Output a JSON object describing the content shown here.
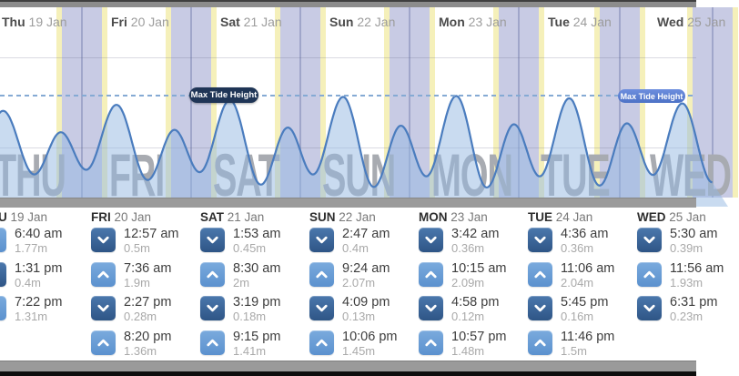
{
  "chart_data": {
    "type": "area",
    "unit": "m",
    "max_line_label": "Max Tide Height",
    "ylim": [
      0,
      2.2
    ],
    "layout_hints": {
      "x_axis": "7 day columns, 24h each",
      "night_bands": "lavender night bands with yellow twilight edges at each day boundary",
      "max_line": "horizontal dashed line at weekly maximum tide (2.09m)",
      "grid": "faint horizontal gridlines",
      "watermarks": "large gray weekday abbreviations behind the wave"
    },
    "days": [
      {
        "label": "Thu",
        "date": "19 Jan",
        "tides": [
          {
            "time": "6:40 am",
            "height": "1.77m",
            "height_m": 1.77,
            "type": "high"
          },
          {
            "time": "1:31 pm",
            "height": "0.4m",
            "height_m": 0.4,
            "type": "low"
          },
          {
            "time": "7:22 pm",
            "height": "1.31m",
            "height_m": 1.31,
            "type": "high"
          }
        ]
      },
      {
        "label": "Fri",
        "date": "20 Jan",
        "tides": [
          {
            "time": "12:57 am",
            "height": "0.5m",
            "height_m": 0.5,
            "type": "low"
          },
          {
            "time": "7:36 am",
            "height": "1.9m",
            "height_m": 1.9,
            "type": "high"
          },
          {
            "time": "2:27 pm",
            "height": "0.28m",
            "height_m": 0.28,
            "type": "low"
          },
          {
            "time": "8:20 pm",
            "height": "1.36m",
            "height_m": 1.36,
            "type": "high"
          }
        ]
      },
      {
        "label": "Sat",
        "date": "21 Jan",
        "tides": [
          {
            "time": "1:53 am",
            "height": "0.45m",
            "height_m": 0.45,
            "type": "low"
          },
          {
            "time": "8:30 am",
            "height": "2m",
            "height_m": 2.0,
            "type": "high"
          },
          {
            "time": "3:19 pm",
            "height": "0.18m",
            "height_m": 0.18,
            "type": "low"
          },
          {
            "time": "9:15 pm",
            "height": "1.41m",
            "height_m": 1.41,
            "type": "high"
          }
        ]
      },
      {
        "label": "Sun",
        "date": "22 Jan",
        "tides": [
          {
            "time": "2:47 am",
            "height": "0.4m",
            "height_m": 0.4,
            "type": "low"
          },
          {
            "time": "9:24 am",
            "height": "2.07m",
            "height_m": 2.07,
            "type": "high"
          },
          {
            "time": "4:09 pm",
            "height": "0.13m",
            "height_m": 0.13,
            "type": "low"
          },
          {
            "time": "10:06 pm",
            "height": "1.45m",
            "height_m": 1.45,
            "type": "high"
          }
        ]
      },
      {
        "label": "Mon",
        "date": "23 Jan",
        "tides": [
          {
            "time": "3:42 am",
            "height": "0.36m",
            "height_m": 0.36,
            "type": "low"
          },
          {
            "time": "10:15 am",
            "height": "2.09m",
            "height_m": 2.09,
            "type": "high"
          },
          {
            "time": "4:58 pm",
            "height": "0.12m",
            "height_m": 0.12,
            "type": "low"
          },
          {
            "time": "10:57 pm",
            "height": "1.48m",
            "height_m": 1.48,
            "type": "high"
          }
        ]
      },
      {
        "label": "Tue",
        "date": "24 Jan",
        "tides": [
          {
            "time": "4:36 am",
            "height": "0.36m",
            "height_m": 0.36,
            "type": "low"
          },
          {
            "time": "11:06 am",
            "height": "2.04m",
            "height_m": 2.04,
            "type": "high"
          },
          {
            "time": "5:45 pm",
            "height": "0.16m",
            "height_m": 0.16,
            "type": "low"
          },
          {
            "time": "11:46 pm",
            "height": "1.5m",
            "height_m": 1.5,
            "type": "high"
          }
        ]
      },
      {
        "label": "Wed",
        "date": "25 Jan",
        "tides": [
          {
            "time": "5:30 am",
            "height": "0.39m",
            "height_m": 0.39,
            "type": "low"
          },
          {
            "time": "11:56 am",
            "height": "1.93m",
            "height_m": 1.93,
            "type": "high"
          },
          {
            "time": "6:31 pm",
            "height": "0.23m",
            "height_m": 0.23,
            "type": "low"
          }
        ]
      }
    ]
  },
  "colors": {
    "night_band": "#c8cbe4",
    "twilight_band": "#f5f0ba",
    "wave_stroke": "#4a7cbe",
    "wave_fill": "rgba(147,183,225,0.5)",
    "high_tide_icon": "#6ba0d6",
    "low_tide_icon": "#35618f",
    "max_pill_dark": "#1f3556",
    "max_pill_light": "#5b80d1"
  }
}
